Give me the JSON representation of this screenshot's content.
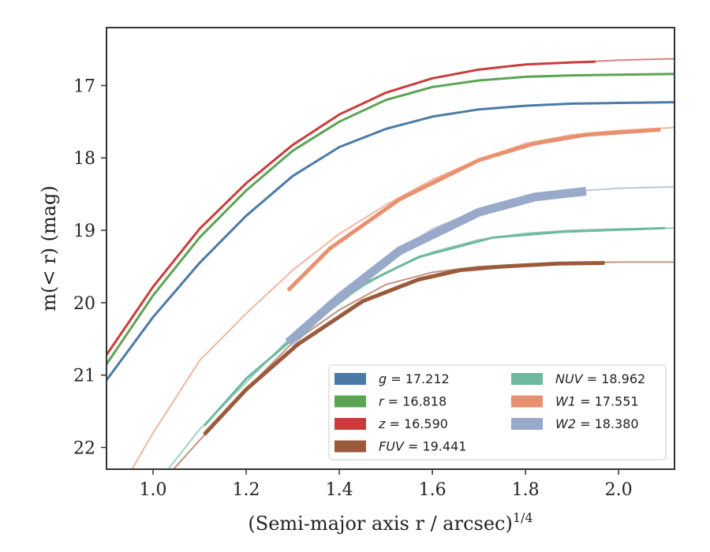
{
  "chart_data": {
    "type": "line",
    "xlabel": "(Semi-major axis r / arcsec)",
    "xlabel_exponent": "1/4",
    "ylabel": "m(< r) (mag)",
    "xlim": [
      0.9,
      2.12
    ],
    "ylim": [
      22.3,
      16.2
    ],
    "y_inverted": true,
    "grid": false,
    "legend_position": "lower-right",
    "legend_columns": 2,
    "xticks": [
      1.0,
      1.2,
      1.4,
      1.6,
      1.8,
      2.0
    ],
    "xtick_labels": [
      "1.0",
      "1.2",
      "1.4",
      "1.6",
      "1.8",
      "2.0"
    ],
    "yticks": [
      17,
      18,
      19,
      20,
      21,
      22
    ],
    "ytick_labels": [
      "17",
      "18",
      "19",
      "20",
      "21",
      "22"
    ],
    "series": [
      {
        "name": "g = 17.212",
        "legend_var": "g",
        "legend_value": "17.212",
        "legend_italic": false,
        "color": "#4c7aa6",
        "model": {
          "x": [
            0.9,
            1.0,
            1.1,
            1.2,
            1.3,
            1.4,
            1.5,
            1.6,
            1.7,
            1.8,
            1.9,
            2.0,
            2.12
          ],
          "y": [
            21.07,
            20.2,
            19.45,
            18.8,
            18.25,
            17.85,
            17.6,
            17.43,
            17.33,
            17.28,
            17.25,
            17.24,
            17.23
          ]
        },
        "data": {
          "x": [
            0.9,
            1.0,
            1.1,
            1.2,
            1.3,
            1.4,
            1.5,
            1.6,
            1.7,
            1.8,
            1.9,
            2.0,
            2.12
          ],
          "y": [
            21.07,
            20.2,
            19.45,
            18.8,
            18.25,
            17.85,
            17.6,
            17.43,
            17.33,
            17.28,
            17.25,
            17.24,
            17.23
          ]
        }
      },
      {
        "name": "r = 16.818",
        "legend_var": "r",
        "legend_value": "16.818",
        "legend_italic": false,
        "color": "#5aa454",
        "model": {
          "x": [
            0.9,
            1.0,
            1.1,
            1.2,
            1.3,
            1.4,
            1.5,
            1.6,
            1.7,
            1.8,
            1.9,
            2.0,
            2.12
          ],
          "y": [
            20.85,
            19.9,
            19.1,
            18.45,
            17.9,
            17.5,
            17.2,
            17.02,
            16.93,
            16.88,
            16.86,
            16.85,
            16.84
          ]
        },
        "data": {
          "x": [
            0.9,
            1.0,
            1.1,
            1.2,
            1.3,
            1.4,
            1.5,
            1.6,
            1.7,
            1.8,
            1.9,
            2.0,
            2.12
          ],
          "y": [
            20.85,
            19.9,
            19.1,
            18.45,
            17.9,
            17.5,
            17.2,
            17.02,
            16.93,
            16.88,
            16.86,
            16.85,
            16.84
          ]
        }
      },
      {
        "name": "z = 16.590",
        "legend_var": "z",
        "legend_value": "16.590",
        "legend_italic": false,
        "color": "#cc3b3b",
        "model": {
          "x": [
            0.9,
            1.0,
            1.1,
            1.2,
            1.3,
            1.4,
            1.5,
            1.6,
            1.7,
            1.8,
            1.9,
            2.0,
            2.12
          ],
          "y": [
            20.72,
            19.78,
            18.98,
            18.35,
            17.82,
            17.4,
            17.1,
            16.9,
            16.78,
            16.71,
            16.68,
            16.65,
            16.63
          ]
        },
        "data": {
          "x": [
            0.9,
            1.0,
            1.1,
            1.2,
            1.3,
            1.4,
            1.5,
            1.6,
            1.7,
            1.8,
            1.9,
            1.95
          ],
          "y": [
            20.72,
            19.78,
            18.98,
            18.35,
            17.82,
            17.4,
            17.1,
            16.9,
            16.78,
            16.71,
            16.68,
            16.67
          ]
        }
      },
      {
        "name": "FUV = 19.441",
        "legend_var": "FUV",
        "legend_value": "19.441",
        "legend_italic": true,
        "color": "#9c5a3c",
        "model": {
          "x": [
            1.03,
            1.1,
            1.2,
            1.3,
            1.4,
            1.5,
            1.6,
            1.7,
            1.8,
            1.9,
            2.0,
            2.12
          ],
          "y": [
            22.4,
            21.9,
            21.2,
            20.55,
            20.1,
            19.75,
            19.58,
            19.5,
            19.47,
            19.45,
            19.44,
            19.44
          ]
        },
        "data": {
          "x": [
            1.11,
            1.2,
            1.31,
            1.45,
            1.57,
            1.66,
            1.75,
            1.87,
            1.97
          ],
          "y": [
            21.82,
            21.2,
            20.58,
            19.98,
            19.68,
            19.55,
            19.5,
            19.46,
            19.45
          ]
        }
      },
      {
        "name": "NUV = 18.962",
        "legend_var": "NUV",
        "legend_value": "18.962",
        "legend_italic": true,
        "color": "#6fb8a0",
        "model": {
          "x": [
            1.02,
            1.1,
            1.2,
            1.3,
            1.4,
            1.5,
            1.6,
            1.7,
            1.8,
            1.9,
            2.0,
            2.12
          ],
          "y": [
            22.4,
            21.75,
            21.1,
            20.45,
            19.98,
            19.58,
            19.3,
            19.13,
            19.04,
            19.0,
            18.98,
            18.97
          ]
        },
        "data": {
          "x": [
            1.11,
            1.2,
            1.3,
            1.45,
            1.57,
            1.73,
            1.88,
            2.1
          ],
          "y": [
            21.7,
            21.05,
            20.5,
            19.75,
            19.37,
            19.1,
            19.02,
            18.97
          ]
        }
      },
      {
        "name": "W1 = 17.551",
        "legend_var": "W1",
        "legend_value": "17.551",
        "legend_italic": true,
        "color": "#e9906e",
        "model": {
          "x": [
            0.95,
            1.0,
            1.1,
            1.2,
            1.3,
            1.4,
            1.5,
            1.6,
            1.7,
            1.8,
            1.9,
            2.0,
            2.12
          ],
          "y": [
            22.35,
            21.8,
            20.8,
            20.15,
            19.55,
            19.05,
            18.65,
            18.3,
            18.02,
            17.8,
            17.68,
            17.62,
            17.58
          ]
        },
        "data": {
          "x": [
            1.29,
            1.38,
            1.53,
            1.7,
            1.82,
            1.93,
            2.09
          ],
          "y": [
            19.83,
            19.25,
            18.57,
            18.03,
            17.8,
            17.68,
            17.61
          ]
        }
      },
      {
        "name": "W2 = 18.380",
        "legend_var": "W2",
        "legend_value": "18.380",
        "legend_italic": true,
        "color": "#98a9c9",
        "model": {
          "x": [
            1.3,
            1.4,
            1.5,
            1.6,
            1.7,
            1.8,
            1.9,
            2.0,
            2.12
          ],
          "y": [
            20.6,
            19.95,
            19.4,
            18.98,
            18.72,
            18.55,
            18.46,
            18.42,
            18.4
          ]
        },
        "data": {
          "x": [
            1.29,
            1.4,
            1.53,
            1.7,
            1.82,
            1.93
          ],
          "y": [
            20.55,
            19.93,
            19.28,
            18.75,
            18.54,
            18.46
          ]
        }
      }
    ]
  }
}
